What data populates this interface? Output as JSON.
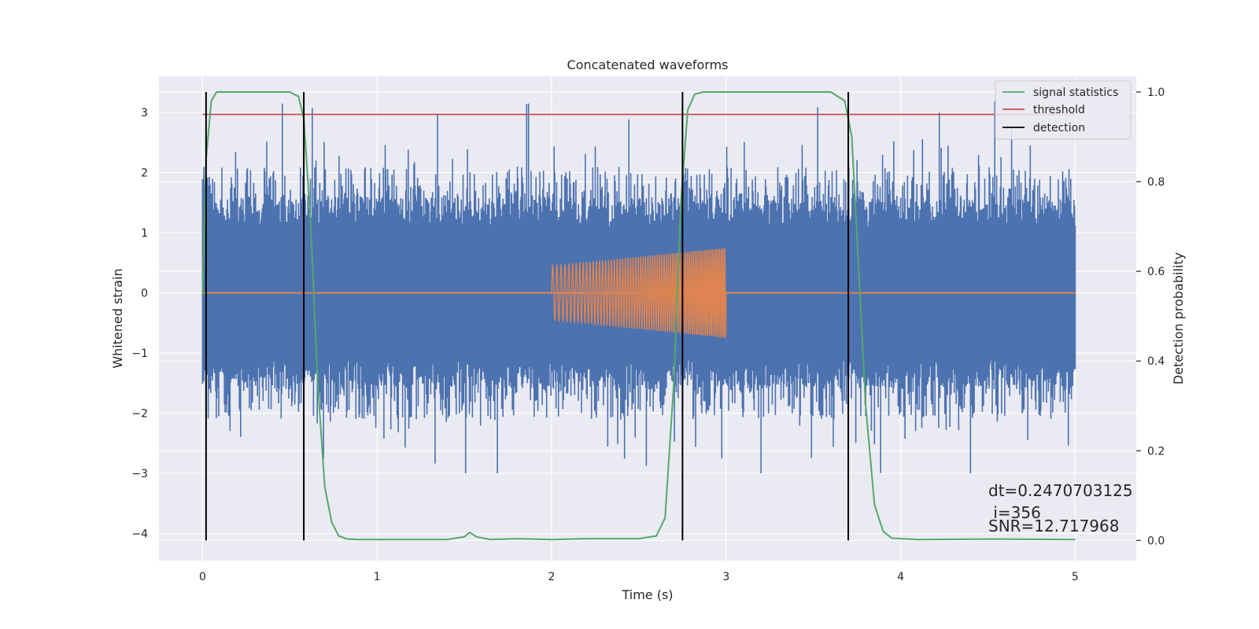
{
  "chart_data": {
    "type": "line",
    "title": "Concatenated waveforms",
    "xlabel": "Time (s)",
    "ylabel": "Whitened strain",
    "y2label": "Detection probability",
    "xlim": [
      -0.25,
      5.35
    ],
    "ylim": [
      -4.45,
      3.6
    ],
    "y2lim": [
      -0.045,
      1.035
    ],
    "x_ticks": [
      "0",
      "1",
      "2",
      "3",
      "4",
      "5"
    ],
    "y_ticks": [
      "3",
      "2",
      "1",
      "0",
      "−1",
      "−2",
      "−3",
      "−4"
    ],
    "y2_ticks": [
      "1.0",
      "0.8",
      "0.6",
      "0.4",
      "0.2",
      "0.0"
    ],
    "grid": true,
    "legend_position": "top-right",
    "colors": {
      "strain": "#4c72b0",
      "template": "#dd8452",
      "signal_statistics": "#55a868",
      "threshold": "#c44e52",
      "detection": "#000000",
      "background": "#eaeaf2"
    },
    "series": [
      {
        "name": "signal statistics",
        "axis": "right",
        "x": [
          0.0,
          0.02,
          0.05,
          0.08,
          0.12,
          0.5,
          0.55,
          0.58,
          0.62,
          0.66,
          0.7,
          0.74,
          0.78,
          0.83,
          0.9,
          1.4,
          1.5,
          1.53,
          1.57,
          1.65,
          1.8,
          2.0,
          2.2,
          2.5,
          2.6,
          2.65,
          2.7,
          2.74,
          2.78,
          2.82,
          2.87,
          2.95,
          3.6,
          3.68,
          3.72,
          3.76,
          3.8,
          3.85,
          3.9,
          3.95,
          4.1,
          4.5,
          5.0
        ],
        "values": [
          0.55,
          0.85,
          0.98,
          1.0,
          1.0,
          1.0,
          0.99,
          0.94,
          0.7,
          0.35,
          0.12,
          0.04,
          0.01,
          0.003,
          0.002,
          0.002,
          0.008,
          0.018,
          0.008,
          0.002,
          0.004,
          0.002,
          0.004,
          0.004,
          0.01,
          0.05,
          0.35,
          0.75,
          0.96,
          0.995,
          1.0,
          1.0,
          1.0,
          0.98,
          0.9,
          0.6,
          0.3,
          0.08,
          0.02,
          0.005,
          0.002,
          0.003,
          0.002
        ]
      },
      {
        "name": "threshold",
        "axis": "right",
        "x": [
          0.0,
          5.0
        ],
        "values": [
          0.95,
          0.95
        ]
      },
      {
        "name": "detection",
        "axis": "right",
        "x": [
          0.02,
          0.58,
          2.75,
          3.7
        ],
        "y_range": [
          0.0,
          1.0
        ]
      },
      {
        "name": "",
        "axis": "left",
        "kind": "whitened strain noise",
        "x_range": [
          0.0,
          5.0
        ],
        "envelope": [
          -3.0,
          3.2
        ],
        "core": [
          -1.1,
          1.1
        ]
      },
      {
        "name": "",
        "axis": "left",
        "kind": "chirp template",
        "x_range": [
          2.0,
          3.0
        ],
        "amplitude": [
          0.45,
          0.75
        ]
      }
    ],
    "legend": [
      "signal statistics",
      "threshold",
      "detection"
    ],
    "annotations": [
      "dt=0.2470703125",
      " i=356",
      "SNR=12.717968"
    ]
  }
}
